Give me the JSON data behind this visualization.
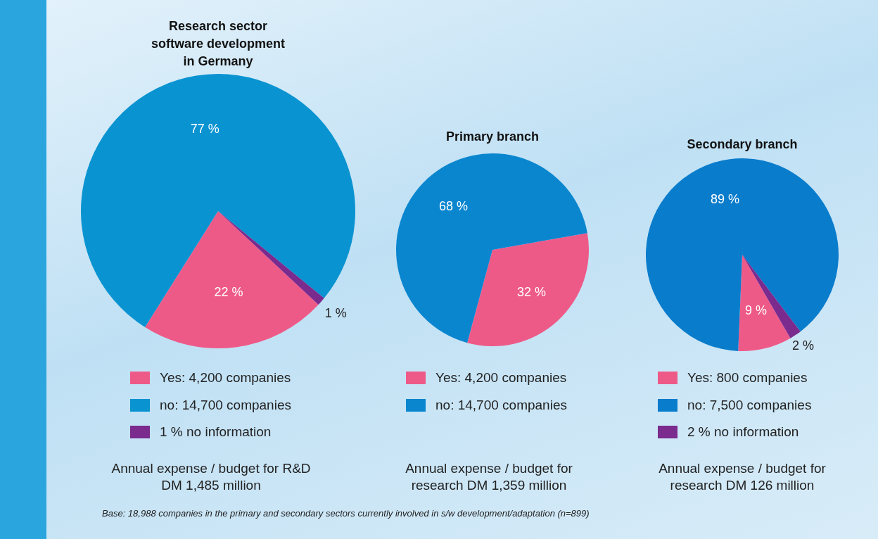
{
  "chart_data": [
    {
      "type": "pie",
      "title": "Research sector software development in Germany",
      "categories": [
        "Yes: 4,200 companies",
        "no: 14,700 companies",
        "1 % no information"
      ],
      "values": [
        22,
        77,
        1
      ],
      "colors": [
        "#ee5a88",
        "#0a93d1",
        "#7b2a8e"
      ],
      "value_labels": [
        "22 %",
        "77 %",
        "1 %"
      ],
      "legend": "bottom",
      "annotations": [
        "Annual expense / budget for R&D\nDM 1,485 million",
        "Base: 18,988 companies in the primary and secondary sectors currently involved in s/w development/adaptation (n=899)"
      ]
    },
    {
      "type": "pie",
      "title": "Primary branch",
      "categories": [
        "Yes: 4,200 companies",
        "no: 14,700 companies"
      ],
      "values": [
        32,
        68
      ],
      "colors": [
        "#ee5a88",
        "#0a86cf"
      ],
      "value_labels": [
        "32 %",
        "68 %"
      ],
      "legend": "bottom",
      "annotations": [
        "Annual expense / budget for\nresearch DM 1,359 million"
      ]
    },
    {
      "type": "pie",
      "title": "Secondary branch",
      "categories": [
        "Yes: 800 companies",
        "no: 7,500 companies",
        "2 % no information"
      ],
      "values": [
        9,
        89,
        2
      ],
      "colors": [
        "#ee5a88",
        "#0a7ccc",
        "#7b2a8e"
      ],
      "value_labels": [
        "9 %",
        "89 %",
        "2 %"
      ],
      "legend": "bottom",
      "annotations": [
        "Annual expense / budget for\nresearch DM 126 million"
      ]
    }
  ]
}
